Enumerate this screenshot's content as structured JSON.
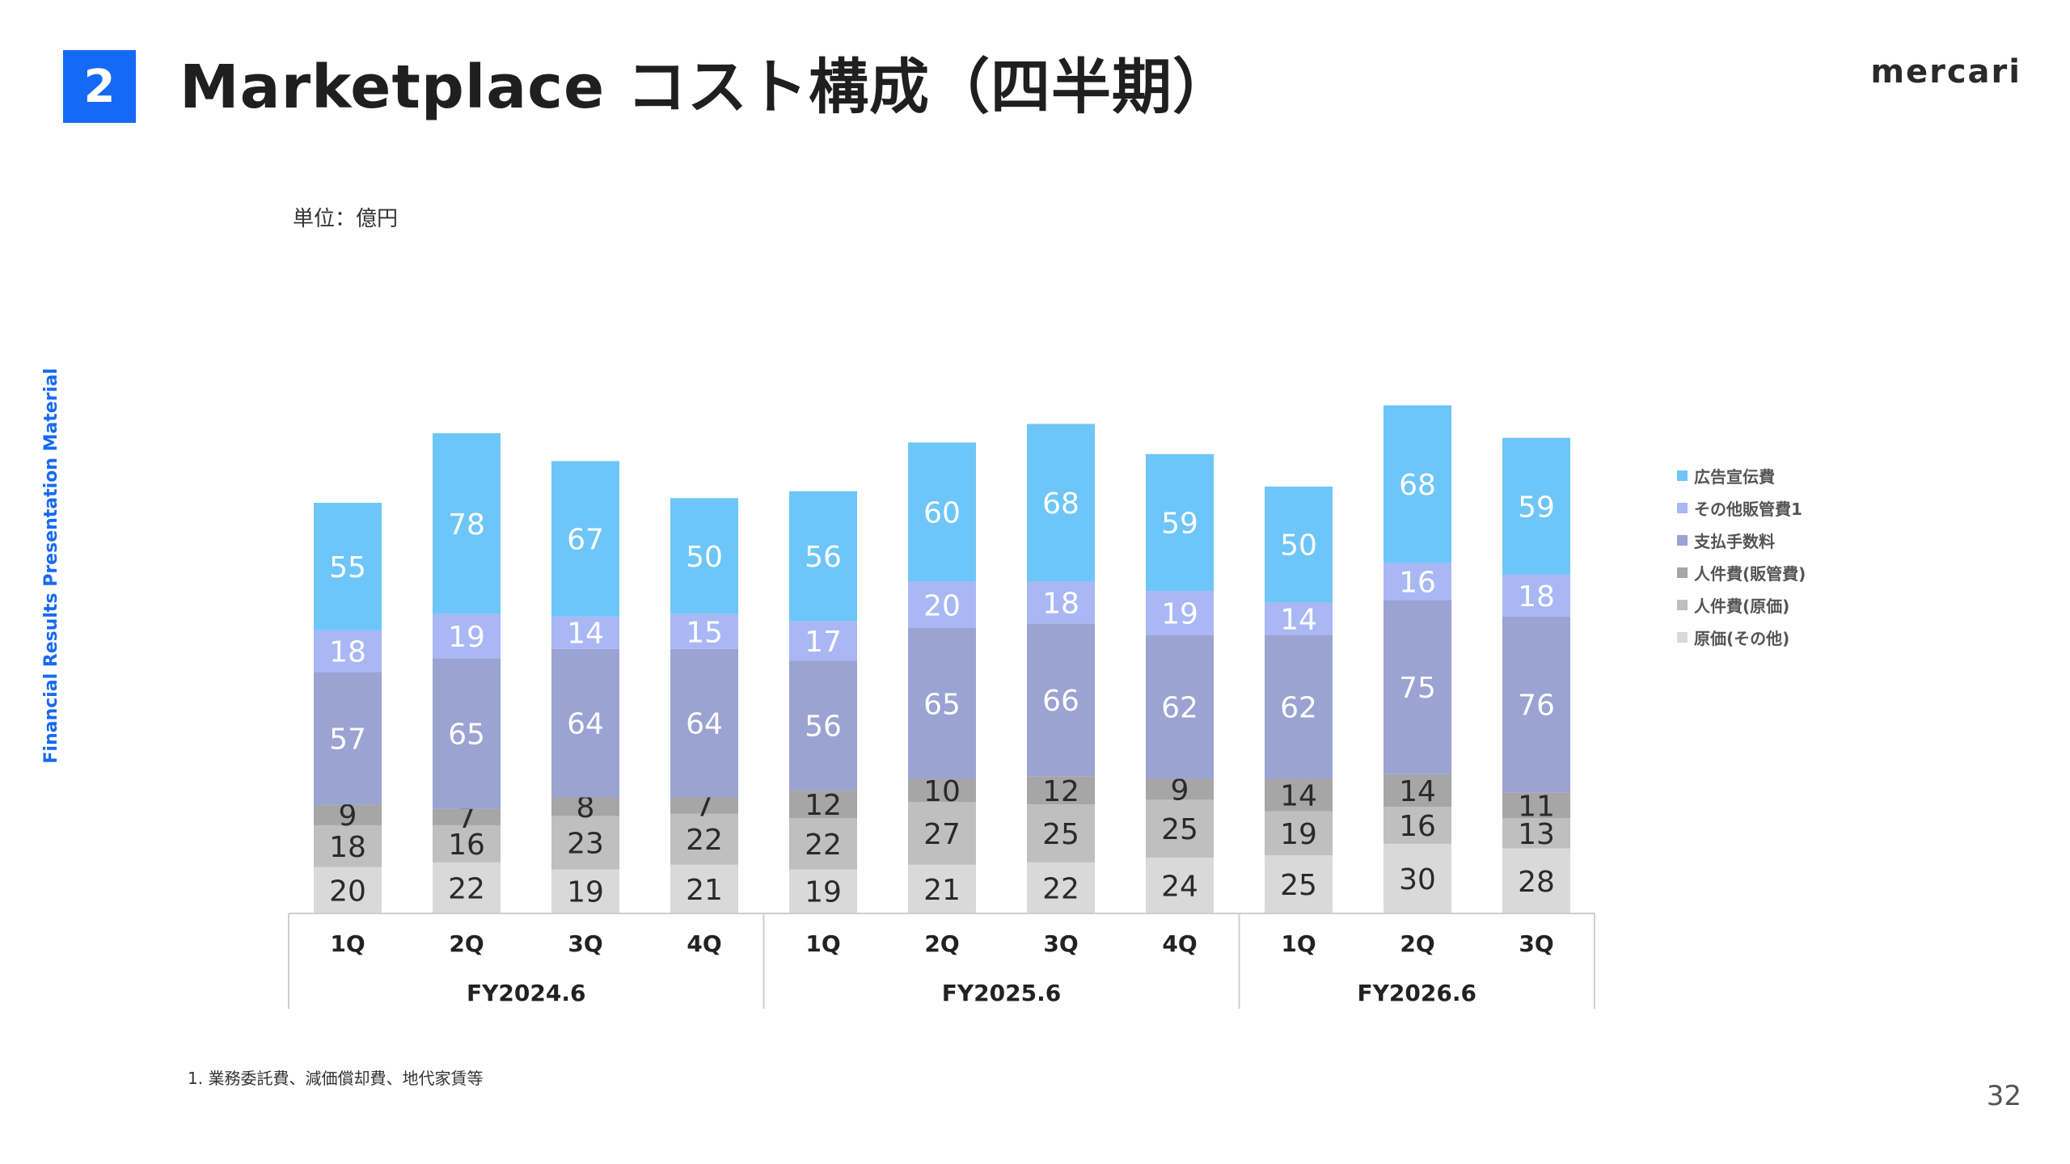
{
  "header": {
    "section_number": "2",
    "title": "Marketplace コスト構成（四半期）",
    "logo": "mercari"
  },
  "side_label": "Financial Results Presentation Material",
  "unit_label": "単位：億円",
  "footnote": "1. 業務委託費、減価償却費、地代家賃等",
  "page_number": "32",
  "chart_data": {
    "type": "bar",
    "stacked": true,
    "categories": [
      "1Q",
      "2Q",
      "3Q",
      "4Q",
      "1Q",
      "2Q",
      "3Q",
      "4Q",
      "1Q",
      "2Q",
      "3Q"
    ],
    "groups": [
      {
        "label": "FY2024.6",
        "count": 4
      },
      {
        "label": "FY2025.6",
        "count": 4
      },
      {
        "label": "FY2026.6",
        "count": 3
      }
    ],
    "series": [
      {
        "name": "原価(その他)",
        "color": "#d9d9d9",
        "values": [
          20,
          22,
          19,
          21,
          19,
          21,
          22,
          24,
          25,
          30,
          28
        ]
      },
      {
        "name": "人件費(原価)",
        "color": "#bfbfbf",
        "values": [
          18,
          16,
          23,
          22,
          22,
          27,
          25,
          25,
          19,
          16,
          13
        ]
      },
      {
        "name": "人件費(販管費)",
        "color": "#a6a6a6",
        "values": [
          9,
          7,
          8,
          7,
          12,
          10,
          12,
          9,
          14,
          14,
          11
        ]
      },
      {
        "name": "支払手数料",
        "color": "#9aa3d2",
        "values": [
          57,
          65,
          64,
          64,
          56,
          65,
          66,
          62,
          62,
          75,
          76
        ]
      },
      {
        "name": "その他販管費1",
        "color": "#a9b8f4",
        "values": [
          18,
          19,
          14,
          15,
          17,
          20,
          18,
          19,
          14,
          16,
          18
        ]
      },
      {
        "name": "広告宣伝費",
        "color": "#6ec6f8",
        "values": [
          55,
          78,
          67,
          50,
          56,
          60,
          68,
          59,
          50,
          68,
          59
        ]
      }
    ],
    "legend_order": [
      "広告宣伝費",
      "その他販管費1",
      "支払手数料",
      "人件費(販管費)",
      "人件費(原価)",
      "原価(その他)"
    ],
    "legend_position": "right",
    "grid": false
  }
}
